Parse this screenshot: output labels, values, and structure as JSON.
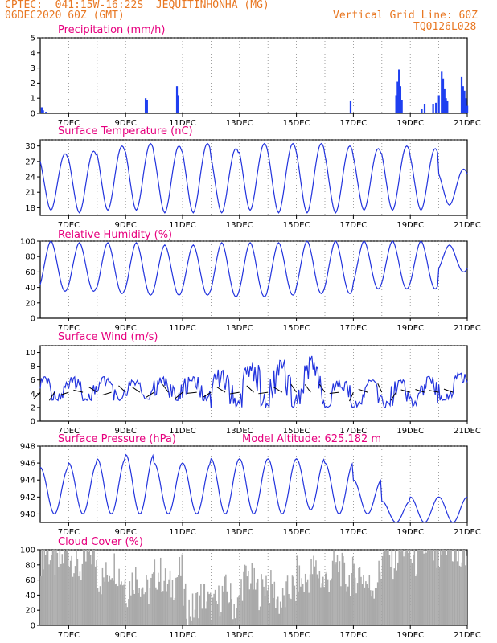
{
  "header": {
    "line1": "CPTEC:  041:15W-16:22S  JEQUITINHONHA (MG)",
    "line2_left": "06DEC2020 60Z (GMT)",
    "line2_right": "Vertical Grid Line: 60Z",
    "line3_right": "TQ0126L028"
  },
  "colors": {
    "line": "#2233dd",
    "bar": "#1f3ff0",
    "cloud": "#a9a9a9",
    "title": "#e6007e",
    "header": "#e87722"
  },
  "model_altitude_label": "Model Altitude: 625.182 m",
  "chart_data": [
    {
      "type": "bar",
      "title": "Precipitation (mm/h)",
      "ylim": [
        0,
        5
      ],
      "yticks": [
        "0",
        "1",
        "2",
        "3",
        "4",
        "5"
      ],
      "xticks": [
        "7DEC",
        "9DEC",
        "11DEC",
        "13DEC",
        "15DEC",
        "17DEC",
        "19DEC",
        "21DEC"
      ],
      "events": [
        {
          "day": 6.05,
          "value": 0.4
        },
        {
          "day": 6.1,
          "value": 0.2
        },
        {
          "day": 6.2,
          "value": 0.1
        },
        {
          "day": 9.7,
          "value": 1.0
        },
        {
          "day": 9.75,
          "value": 0.9
        },
        {
          "day": 10.8,
          "value": 1.8
        },
        {
          "day": 10.85,
          "value": 1.2
        },
        {
          "day": 16.9,
          "value": 0.8
        },
        {
          "day": 18.5,
          "value": 1.2
        },
        {
          "day": 18.55,
          "value": 2.1
        },
        {
          "day": 18.6,
          "value": 2.9
        },
        {
          "day": 18.65,
          "value": 1.8
        },
        {
          "day": 18.7,
          "value": 0.9
        },
        {
          "day": 19.4,
          "value": 0.3
        },
        {
          "day": 19.5,
          "value": 0.6
        },
        {
          "day": 19.8,
          "value": 0.6
        },
        {
          "day": 19.9,
          "value": 0.7
        },
        {
          "day": 20.0,
          "value": 1.2
        },
        {
          "day": 20.1,
          "value": 2.8
        },
        {
          "day": 20.15,
          "value": 2.3
        },
        {
          "day": 20.2,
          "value": 1.6
        },
        {
          "day": 20.25,
          "value": 1.0
        },
        {
          "day": 20.3,
          "value": 0.8
        },
        {
          "day": 20.8,
          "value": 2.4
        },
        {
          "day": 20.85,
          "value": 1.8
        },
        {
          "day": 20.9,
          "value": 1.5
        },
        {
          "day": 20.95,
          "value": 1.0
        },
        {
          "day": 21.0,
          "value": 0.5
        }
      ]
    },
    {
      "type": "line",
      "title": "Surface Temperature (nC)",
      "ylim": [
        16.5,
        31.2
      ],
      "yticks": [
        "18",
        "21",
        "24",
        "27",
        "30"
      ],
      "xticks": [
        "7DEC",
        "9DEC",
        "11DEC",
        "13DEC",
        "15DEC",
        "17DEC",
        "19DEC",
        "21DEC"
      ],
      "daily_min": [
        17.5,
        17.0,
        17.5,
        17.5,
        17.0,
        17.0,
        17.0,
        17.5,
        17.0,
        17.0,
        17.0,
        17.5,
        17.5,
        17.5,
        18.5
      ],
      "daily_max": [
        28.5,
        29.0,
        30.0,
        30.5,
        30.0,
        30.5,
        29.5,
        30.5,
        30.5,
        30.5,
        30.0,
        29.5,
        30.0,
        29.5,
        25.5
      ]
    },
    {
      "type": "line",
      "title": "Relative Humidity (%)",
      "ylim": [
        0,
        100
      ],
      "yticks": [
        "0",
        "20",
        "40",
        "60",
        "80",
        "100"
      ],
      "xticks": [
        "7DEC",
        "9DEC",
        "11DEC",
        "13DEC",
        "15DEC",
        "17DEC",
        "19DEC",
        "21DEC"
      ],
      "daily_min": [
        35,
        35,
        32,
        30,
        30,
        30,
        28,
        28,
        30,
        32,
        32,
        38,
        38,
        38,
        60
      ],
      "daily_max": [
        100,
        98,
        98,
        98,
        95,
        95,
        98,
        98,
        98,
        100,
        100,
        100,
        100,
        100,
        95
      ]
    },
    {
      "type": "line",
      "title": "Surface Wind (m/s)",
      "ylim": [
        0,
        11
      ],
      "yticks": [
        "0",
        "2",
        "4",
        "6",
        "8",
        "10"
      ],
      "xticks": [
        "7DEC",
        "9DEC",
        "11DEC",
        "13DEC",
        "15DEC",
        "17DEC",
        "19DEC",
        "21DEC"
      ],
      "daily_min": [
        3,
        3,
        3,
        3,
        3,
        3,
        2,
        2,
        2,
        2,
        2,
        2,
        2,
        2,
        3
      ],
      "daily_max": [
        6.5,
        6.5,
        6.5,
        6,
        6.5,
        6.5,
        7.5,
        8.5,
        9,
        9.5,
        6,
        6,
        6,
        6.5,
        7
      ]
    },
    {
      "type": "line",
      "title": "Surface Pressure (hPa)",
      "ylim": [
        939,
        948
      ],
      "yticks": [
        "940",
        "942",
        "944",
        "946",
        "948"
      ],
      "xticks": [
        "7DEC",
        "9DEC",
        "11DEC",
        "13DEC",
        "15DEC",
        "17DEC",
        "19DEC",
        "21DEC"
      ],
      "daily_min": [
        940.0,
        940.0,
        940.0,
        940.0,
        940.0,
        940.0,
        940.0,
        940.0,
        940.0,
        940.5,
        940.0,
        940.0,
        939.0,
        939.0,
        939.0
      ],
      "daily_max": [
        945.5,
        946.0,
        946.5,
        947.0,
        946.0,
        946.0,
        946.5,
        946.5,
        946.5,
        946.5,
        946.0,
        944.0,
        941.5,
        942.0,
        942.0
      ]
    },
    {
      "type": "bar",
      "title": "Cloud Cover (%)",
      "ylim": [
        0,
        100
      ],
      "yticks": [
        "0",
        "20",
        "40",
        "60",
        "80",
        "100"
      ],
      "xticks": [
        "7DEC",
        "9DEC",
        "11DEC",
        "13DEC",
        "15DEC",
        "17DEC",
        "19DEC",
        "21DEC"
      ],
      "daily_mean": [
        90,
        85,
        70,
        55,
        60,
        30,
        35,
        55,
        40,
        65,
        70,
        60,
        95,
        95,
        95
      ]
    }
  ]
}
